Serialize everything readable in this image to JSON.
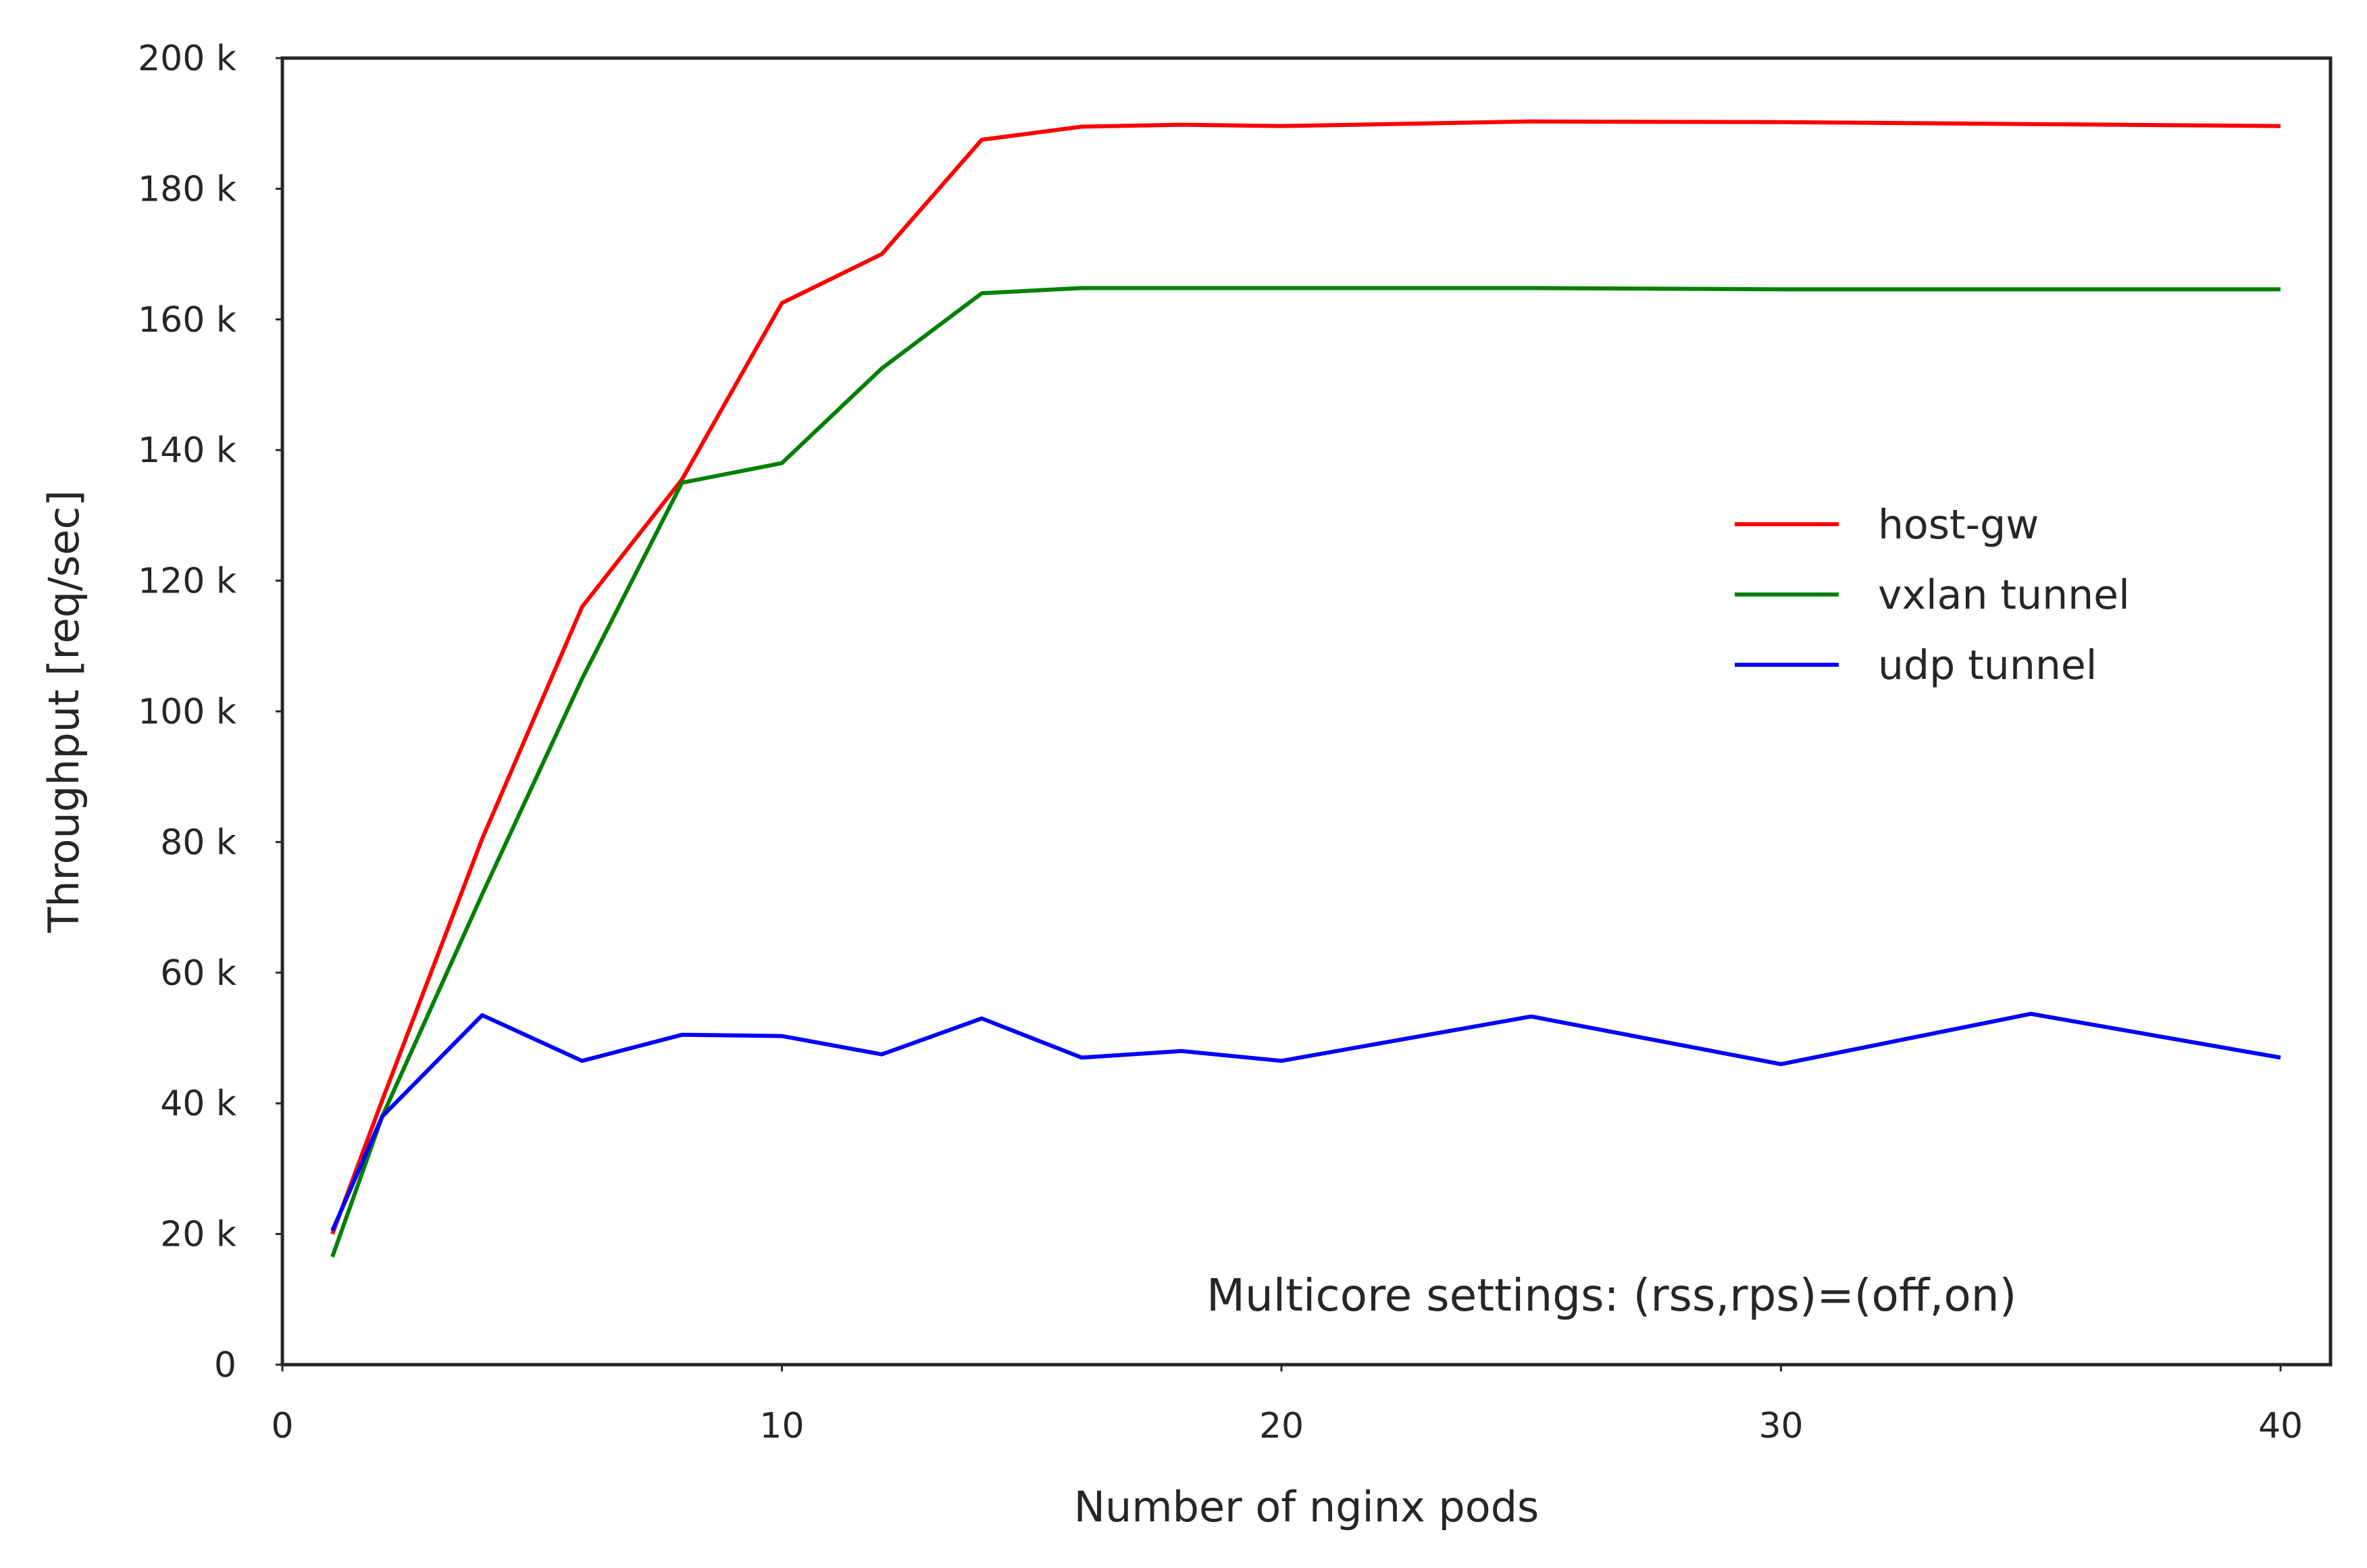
{
  "chart_data": {
    "type": "line",
    "title": "",
    "xlabel": "Number of nginx pods",
    "ylabel": "Throughput [req/sec]",
    "xlim": [
      0,
      41
    ],
    "ylim": [
      0,
      200000
    ],
    "x_ticks": [
      0,
      10,
      20,
      30,
      40
    ],
    "x_tick_labels": [
      "0",
      "10",
      "20",
      "30",
      "40"
    ],
    "y_ticks": [
      0,
      20000,
      40000,
      60000,
      80000,
      100000,
      120000,
      140000,
      160000,
      180000,
      200000
    ],
    "y_tick_labels": [
      "0",
      "20 k",
      "40 k",
      "60 k",
      "80 k",
      "100 k",
      "120 k",
      "140 k",
      "160 k",
      "180 k",
      "200 k"
    ],
    "grid": false,
    "legend_position": "center-right",
    "annotation": "Multicore settings: (rss,rps)=(off,on)",
    "series": [
      {
        "name": "host-gw",
        "color": "#ff0000",
        "x": [
          1,
          2,
          4,
          6,
          8,
          10,
          12,
          14,
          16,
          18,
          20,
          25,
          30,
          35,
          40
        ],
        "y": [
          20000,
          40500,
          80500,
          116000,
          135500,
          162500,
          170000,
          187500,
          189500,
          189800,
          189600,
          190300,
          190200,
          189900,
          189600
        ]
      },
      {
        "name": "vxlan tunnel",
        "color": "#008000",
        "x": [
          1,
          2,
          4,
          6,
          8,
          10,
          12,
          14,
          16,
          18,
          20,
          25,
          30,
          35,
          40
        ],
        "y": [
          16500,
          38000,
          72000,
          105000,
          135000,
          138000,
          152500,
          164000,
          164800,
          164800,
          164800,
          164800,
          164600,
          164600,
          164600
        ]
      },
      {
        "name": "udp tunnel",
        "color": "#0000ff",
        "x": [
          1,
          2,
          4,
          6,
          8,
          10,
          12,
          14,
          16,
          18,
          20,
          25,
          30,
          35,
          40
        ],
        "y": [
          20500,
          38000,
          53500,
          46500,
          50500,
          50300,
          47500,
          53000,
          47000,
          48000,
          46500,
          53300,
          46000,
          53700,
          47000
        ]
      }
    ]
  }
}
